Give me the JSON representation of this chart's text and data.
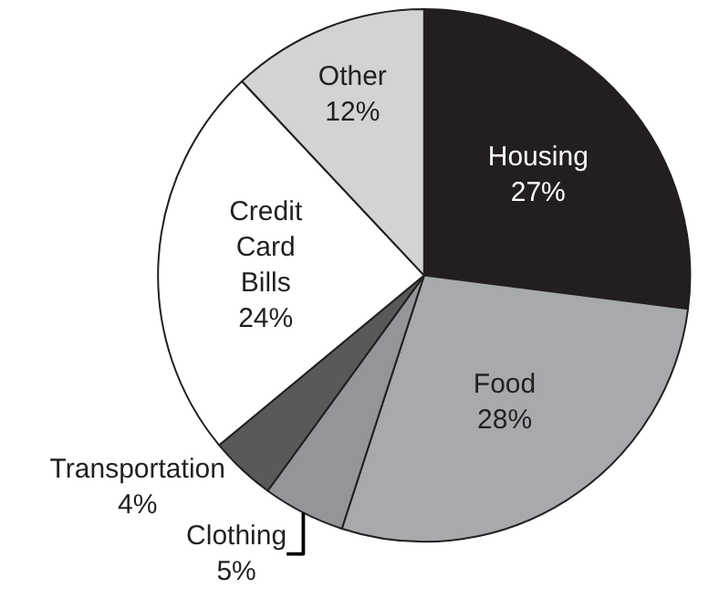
{
  "chart_data": {
    "type": "pie",
    "categories": [
      "Housing",
      "Food",
      "Clothing",
      "Transportation",
      "Credit Card Bills",
      "Other"
    ],
    "values": [
      27,
      28,
      5,
      4,
      24,
      12
    ],
    "value_labels": [
      "27%",
      "28%",
      "5%",
      "4%",
      "24%",
      "12%"
    ],
    "colors": [
      "#231f20",
      "#a7a9ac",
      "#939598",
      "#58595b",
      "#ffffff",
      "#d1d3d4"
    ],
    "legend": false
  }
}
